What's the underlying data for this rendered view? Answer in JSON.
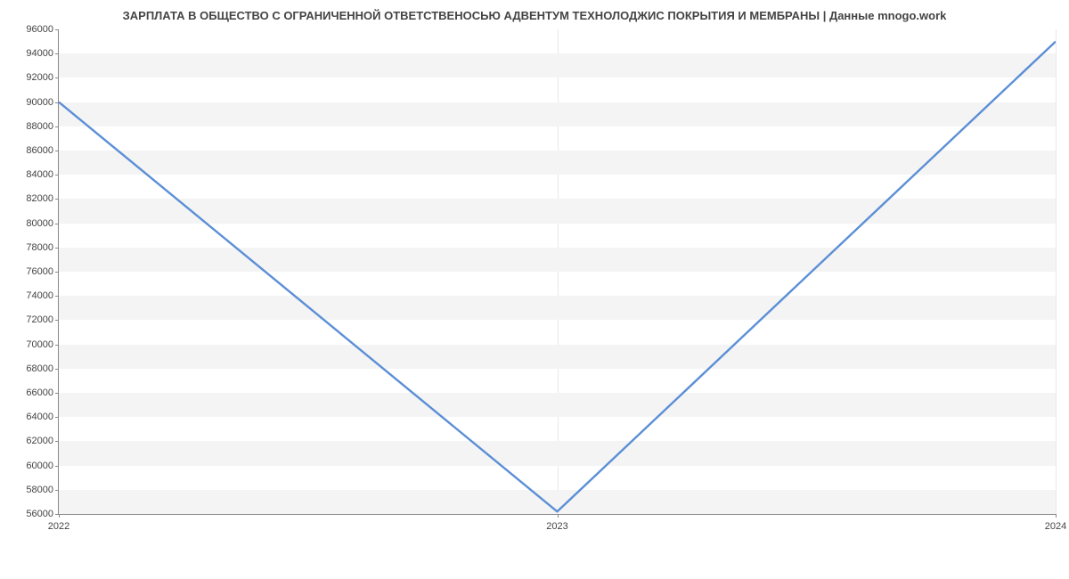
{
  "chart": {
    "type": "line",
    "title": "ЗАРПЛАТА В ОБЩЕСТВО С ОГРАНИЧЕННОЙ ОТВЕТСТВЕНОСЬЮ АДВЕНТУМ ТЕХНОЛОДЖИС ПОКРЫТИЯ И МЕМБРАНЫ | Данные mnogo.work",
    "title_fontsize": 13,
    "title_color": "#444444",
    "background_color": "#ffffff",
    "plot_band_color": "#f4f4f4",
    "axis_color": "#888888",
    "tick_label_color": "#444444",
    "tick_label_fontsize": 11,
    "grid_vertical_color": "#e8e8e8",
    "line_color": "#5b8fd6",
    "line_width": 1.2,
    "x": {
      "categories": [
        "2022",
        "2023",
        "2024"
      ],
      "positions": [
        0,
        0.5,
        1
      ]
    },
    "y": {
      "min": 56000,
      "max": 96000,
      "tick_step": 2000,
      "ticks": [
        56000,
        58000,
        60000,
        62000,
        64000,
        66000,
        68000,
        70000,
        72000,
        74000,
        76000,
        78000,
        80000,
        82000,
        84000,
        86000,
        88000,
        90000,
        92000,
        94000,
        96000
      ]
    },
    "series": {
      "values": [
        90000,
        56200,
        95000
      ],
      "x_positions": [
        0,
        0.5,
        1
      ]
    }
  }
}
